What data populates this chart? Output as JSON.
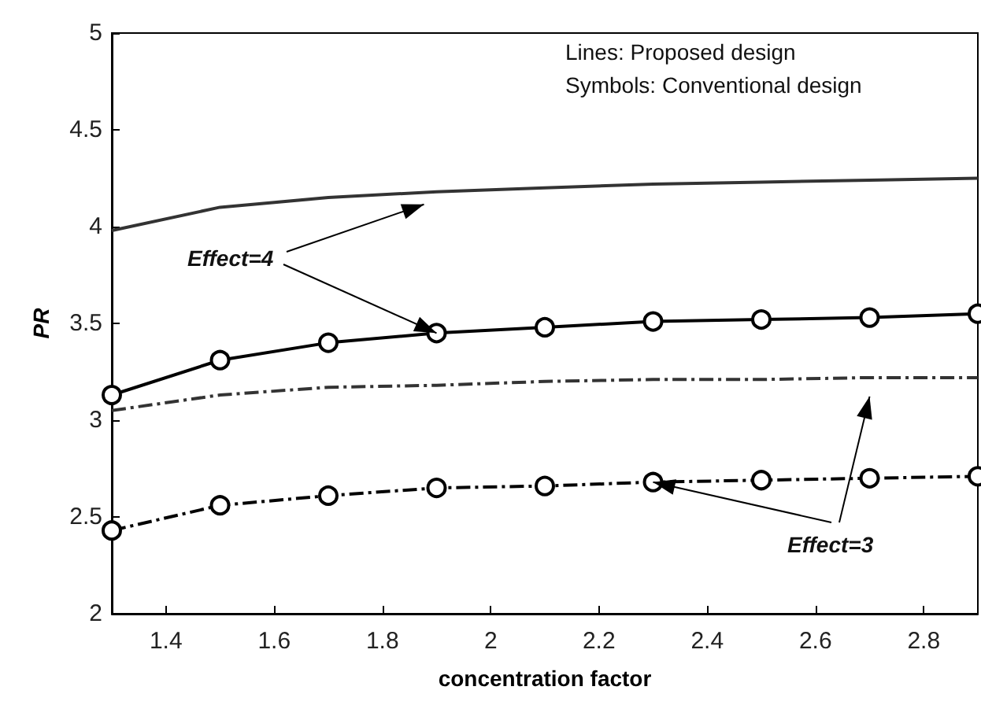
{
  "chart_data": {
    "type": "line",
    "xlabel": "concentration factor",
    "ylabel": "PR",
    "x": [
      1.3,
      1.5,
      1.7,
      1.9,
      2.1,
      2.3,
      2.5,
      2.7,
      2.9
    ],
    "series": [
      {
        "color": "#333333",
        "line_style": "solid",
        "marker": "none",
        "values": [
          3.98,
          4.1,
          4.15,
          4.18,
          4.2,
          4.22,
          4.23,
          4.24,
          4.25
        ]
      },
      {
        "color": "#000000",
        "line_style": "solid",
        "marker": "circle",
        "values": [
          3.13,
          3.31,
          3.4,
          3.45,
          3.48,
          3.51,
          3.52,
          3.53,
          3.55
        ]
      },
      {
        "color": "#333333",
        "line_style": "dashed",
        "marker": "none",
        "values": [
          3.05,
          3.13,
          3.17,
          3.18,
          3.2,
          3.21,
          3.21,
          3.22,
          3.22
        ]
      },
      {
        "color": "#000000",
        "line_style": "dashed",
        "marker": "circle",
        "values": [
          2.43,
          2.56,
          2.61,
          2.65,
          2.66,
          2.68,
          2.69,
          2.7,
          2.71
        ]
      }
    ],
    "xlim": [
      1.3,
      2.9
    ],
    "xticks": [
      1.4,
      1.6,
      1.8,
      2,
      2.2,
      2.4,
      2.6,
      2.8
    ],
    "ylim": [
      2,
      5
    ],
    "yticks": [
      2,
      2.5,
      3,
      3.5,
      4,
      4.5,
      5
    ],
    "annotations": [
      "Lines: Proposed design",
      "Symbols: Conventional design",
      {
        "text": "Effect=4",
        "x": 1.9,
        "y": 3.45
      },
      {
        "text": "Effect=3",
        "x": 2.3,
        "y": 2.68
      }
    ]
  }
}
